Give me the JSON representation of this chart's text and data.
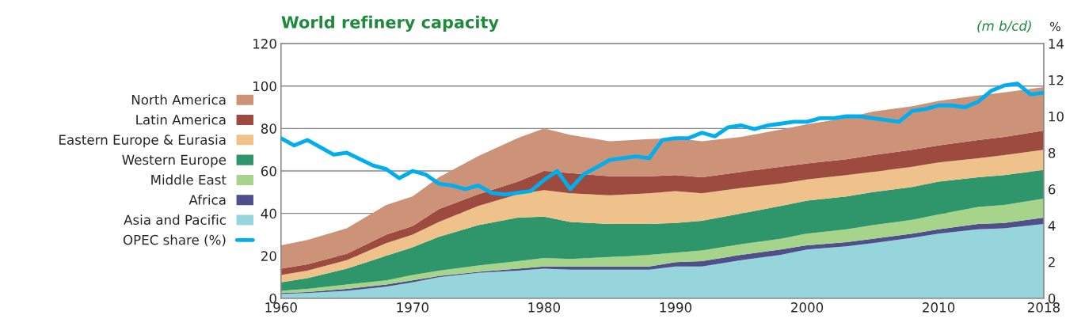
{
  "chart_data": {
    "type": "area",
    "title": "World refinery capacity",
    "annotations": [
      "(m b/cd)"
    ],
    "y2label": "%",
    "stacked": true,
    "x": [
      1960,
      1962,
      1965,
      1968,
      1970,
      1972,
      1975,
      1978,
      1980,
      1982,
      1985,
      1988,
      1990,
      1992,
      1995,
      1998,
      2000,
      2003,
      2005,
      2008,
      2010,
      2013,
      2015,
      2018
    ],
    "series": [
      {
        "name": "Asia and Pacific",
        "color": "#95d5db",
        "values": [
          2,
          2.5,
          3.5,
          5.5,
          7.5,
          10,
          12,
          13,
          14,
          13.5,
          13.5,
          13.5,
          15,
          15,
          18,
          20.5,
          23,
          24.5,
          26,
          28.5,
          30.5,
          32.5,
          33,
          35
        ]
      },
      {
        "name": "Africa",
        "color": "#4f4f8c",
        "values": [
          0.5,
          0.5,
          1,
          1,
          1,
          0.5,
          0.5,
          1,
          1,
          1.5,
          1.5,
          1.5,
          2,
          2.5,
          2.5,
          2.5,
          2,
          2,
          2,
          2,
          2,
          2.5,
          2.5,
          3
        ]
      },
      {
        "name": "Middle East",
        "color": "#a6d48a",
        "values": [
          1,
          1.5,
          2,
          2,
          2.5,
          2.5,
          3,
          3.5,
          4,
          3.5,
          4.5,
          5.5,
          4.5,
          5,
          5,
          5,
          5.5,
          6,
          6.5,
          6.5,
          7,
          8,
          8.5,
          9
        ]
      },
      {
        "name": "Western Europe",
        "color": "#2f956b",
        "values": [
          4,
          5,
          7.5,
          11.5,
          13,
          16,
          19,
          20.5,
          19.5,
          17.5,
          15.5,
          14.5,
          14,
          14,
          14.5,
          15.5,
          15.5,
          15.5,
          15.5,
          15.5,
          15.5,
          14,
          14,
          13.5
        ]
      },
      {
        "name": "Eastern Europe & Eurasia",
        "color": "#eec28a",
        "values": [
          3.5,
          3.5,
          4,
          6,
          6,
          7,
          9,
          11,
          12.5,
          13.5,
          13.5,
          14.5,
          15,
          13,
          12,
          10.5,
          10,
          10,
          9.5,
          9.5,
          9,
          9,
          9.5,
          9.5
        ]
      },
      {
        "name": "Latin America",
        "color": "#9e4b3f",
        "values": [
          3,
          3,
          3,
          4,
          4,
          6,
          5.5,
          6,
          9,
          9.5,
          9,
          8,
          7.5,
          7.5,
          7.5,
          8,
          7.5,
          7.5,
          8,
          8,
          8,
          8.5,
          8.5,
          9
        ]
      },
      {
        "name": "North America",
        "color": "#cc9378",
        "values": [
          11,
          11.5,
          12,
          14,
          14,
          15,
          18,
          20.5,
          20,
          18,
          16.5,
          17.5,
          17.5,
          17,
          16.5,
          17.5,
          18.5,
          19.5,
          20.5,
          20.5,
          21,
          21,
          21,
          20.5
        ]
      },
      {
        "name": "OPEC share (%)",
        "color": "#00aeef",
        "type": "line",
        "axis": "y2",
        "x": [
          1960,
          1961,
          1962,
          1964,
          1965,
          1967,
          1968,
          1969,
          1970,
          1971,
          1972,
          1973,
          1974,
          1975,
          1976,
          1977,
          1978,
          1979,
          1980,
          1981,
          1982,
          1983,
          1984,
          1985,
          1986,
          1987,
          1988,
          1989,
          1990,
          1991,
          1992,
          1993,
          1994,
          1995,
          1996,
          1997,
          1998,
          1999,
          2000,
          2001,
          2002,
          2003,
          2004,
          2005,
          2006,
          2007,
          2008,
          2009,
          2010,
          2011,
          2012,
          2013,
          2014,
          2015,
          2016,
          2017,
          2018
        ],
        "values": [
          8.8,
          8.4,
          8.7,
          7.9,
          8.0,
          7.3,
          7.1,
          6.6,
          7.0,
          6.8,
          6.3,
          6.2,
          6.0,
          6.2,
          5.8,
          5.7,
          5.8,
          5.9,
          6.5,
          7.0,
          6.0,
          6.8,
          7.2,
          7.6,
          7.7,
          7.8,
          7.7,
          8.7,
          8.8,
          8.8,
          9.1,
          8.9,
          9.4,
          9.5,
          9.3,
          9.5,
          9.6,
          9.7,
          9.7,
          9.9,
          9.9,
          10.0,
          10.0,
          9.9,
          9.8,
          9.7,
          10.3,
          10.4,
          10.6,
          10.6,
          10.5,
          10.8,
          11.4,
          11.7,
          11.8,
          11.2,
          11.3
        ]
      }
    ],
    "xlim": [
      1960,
      2018
    ],
    "xticks": [
      1960,
      1970,
      1980,
      1990,
      2000,
      2010,
      2018
    ],
    "ylim": [
      0,
      120
    ],
    "yticks": [
      0,
      20,
      40,
      60,
      80,
      100,
      120
    ],
    "y2lim": [
      0,
      14
    ],
    "y2ticks": [
      0,
      2,
      4,
      6,
      8,
      10,
      12,
      14
    ],
    "grid": "y",
    "legend": "left"
  }
}
